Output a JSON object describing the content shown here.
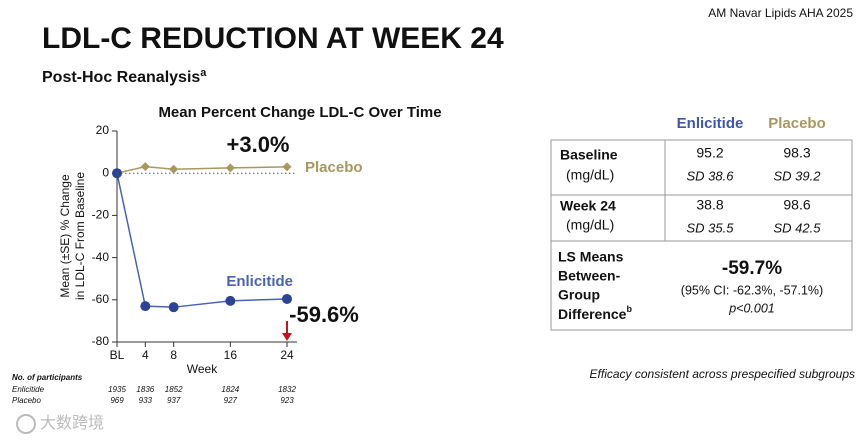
{
  "header": {
    "citation": "AM Navar Lipids AHA 2025",
    "title": "LDL-C REDUCTION AT WEEK 24",
    "subtitle": "Post-Hoc Reanalysis",
    "subtitle_sup": "a"
  },
  "chart_data": {
    "type": "line",
    "title": "Mean Percent Change LDL-C Over Time",
    "y_label": [
      "Mean (±SE) % Change",
      "in LDL-C From Baseline"
    ],
    "x_label": "Week",
    "x": [
      0,
      4,
      8,
      16,
      24
    ],
    "xlim": [
      0,
      24
    ],
    "xticks": [
      {
        "value": 0,
        "label": "BL"
      },
      4,
      8,
      16,
      24
    ],
    "ylim": [
      -80,
      20
    ],
    "yticks": [
      -80,
      -60,
      -40,
      -20,
      0,
      20
    ],
    "series": [
      {
        "name": "Placebo",
        "color": "#a8975e",
        "marker": "diamond",
        "values": [
          0,
          3.1,
          1.9,
          2.5,
          3.0
        ]
      },
      {
        "name": "Enlicitide",
        "color": "#4a63b0",
        "marker": "circle",
        "marker_color": "#2d4496",
        "values": [
          0,
          -63.0,
          -63.5,
          -60.5,
          -59.6
        ]
      }
    ],
    "annotations": [
      "+3.0%",
      "-59.6%"
    ],
    "participants": {
      "title": "No. of participants",
      "rows": [
        {
          "name": "Enlicitide",
          "values": [
            1935,
            1836,
            1852,
            1824,
            1832
          ]
        },
        {
          "name": "Placebo",
          "values": [
            969,
            933,
            937,
            927,
            923
          ]
        }
      ]
    }
  },
  "table": {
    "columns": [
      "Enlicitide",
      "Placebo"
    ],
    "rows": [
      {
        "label": [
          "Baseline",
          "(mg/dL)"
        ],
        "cells": [
          [
            95.2,
            "SD 38.6"
          ],
          [
            98.3,
            "SD 39.2"
          ]
        ]
      },
      {
        "label": [
          "Week 24",
          "(mg/dL)"
        ],
        "cells": [
          [
            38.8,
            "SD 35.5"
          ],
          [
            98.6,
            "SD 42.5"
          ]
        ]
      }
    ],
    "difference": {
      "label": [
        "LS Means",
        "Between-",
        "Group",
        "Difference"
      ],
      "label_sup": "b",
      "value": "-59.7%",
      "ci": "(95% CI: -62.3%, -57.1%)",
      "p": "p<0.001"
    }
  },
  "footnote": "Efficacy consistent across prespecified subgroups",
  "watermark": "大数跨境"
}
